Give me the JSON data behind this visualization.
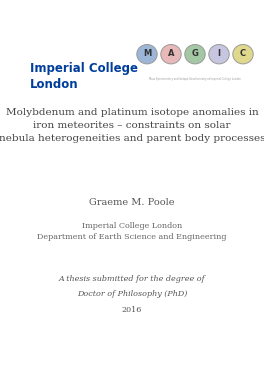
{
  "background_color": "#ffffff",
  "icl_text_line1": "Imperial College",
  "icl_text_line2": "London",
  "icl_color": "#003e9b",
  "magic_letters": [
    "M",
    "A",
    "G",
    "I",
    "C"
  ],
  "magic_colors": [
    "#4a7ab5",
    "#d88080",
    "#5a9a5a",
    "#9898c8",
    "#c8b830"
  ],
  "title_line1": "Molybdenum and platinum isotope anomalies in",
  "title_line2": "iron meteorites – constraints on solar",
  "title_line3": "nebula heterogeneities and parent body processes",
  "title_fontsize": 7.5,
  "title_color": "#444444",
  "author": "Graeme M. Poole",
  "author_fontsize": 7.0,
  "author_color": "#555555",
  "institution_line1": "Imperial College London",
  "institution_line2": "Department of Earth Science and Engineering",
  "institution_fontsize": 5.8,
  "institution_color": "#666666",
  "thesis_line1": "A thesis submitted for the degree of",
  "thesis_line2": "Doctor of Philosophy (PhD)",
  "thesis_line3": "2016",
  "thesis_fontsize": 5.8,
  "thesis_color": "#555555"
}
